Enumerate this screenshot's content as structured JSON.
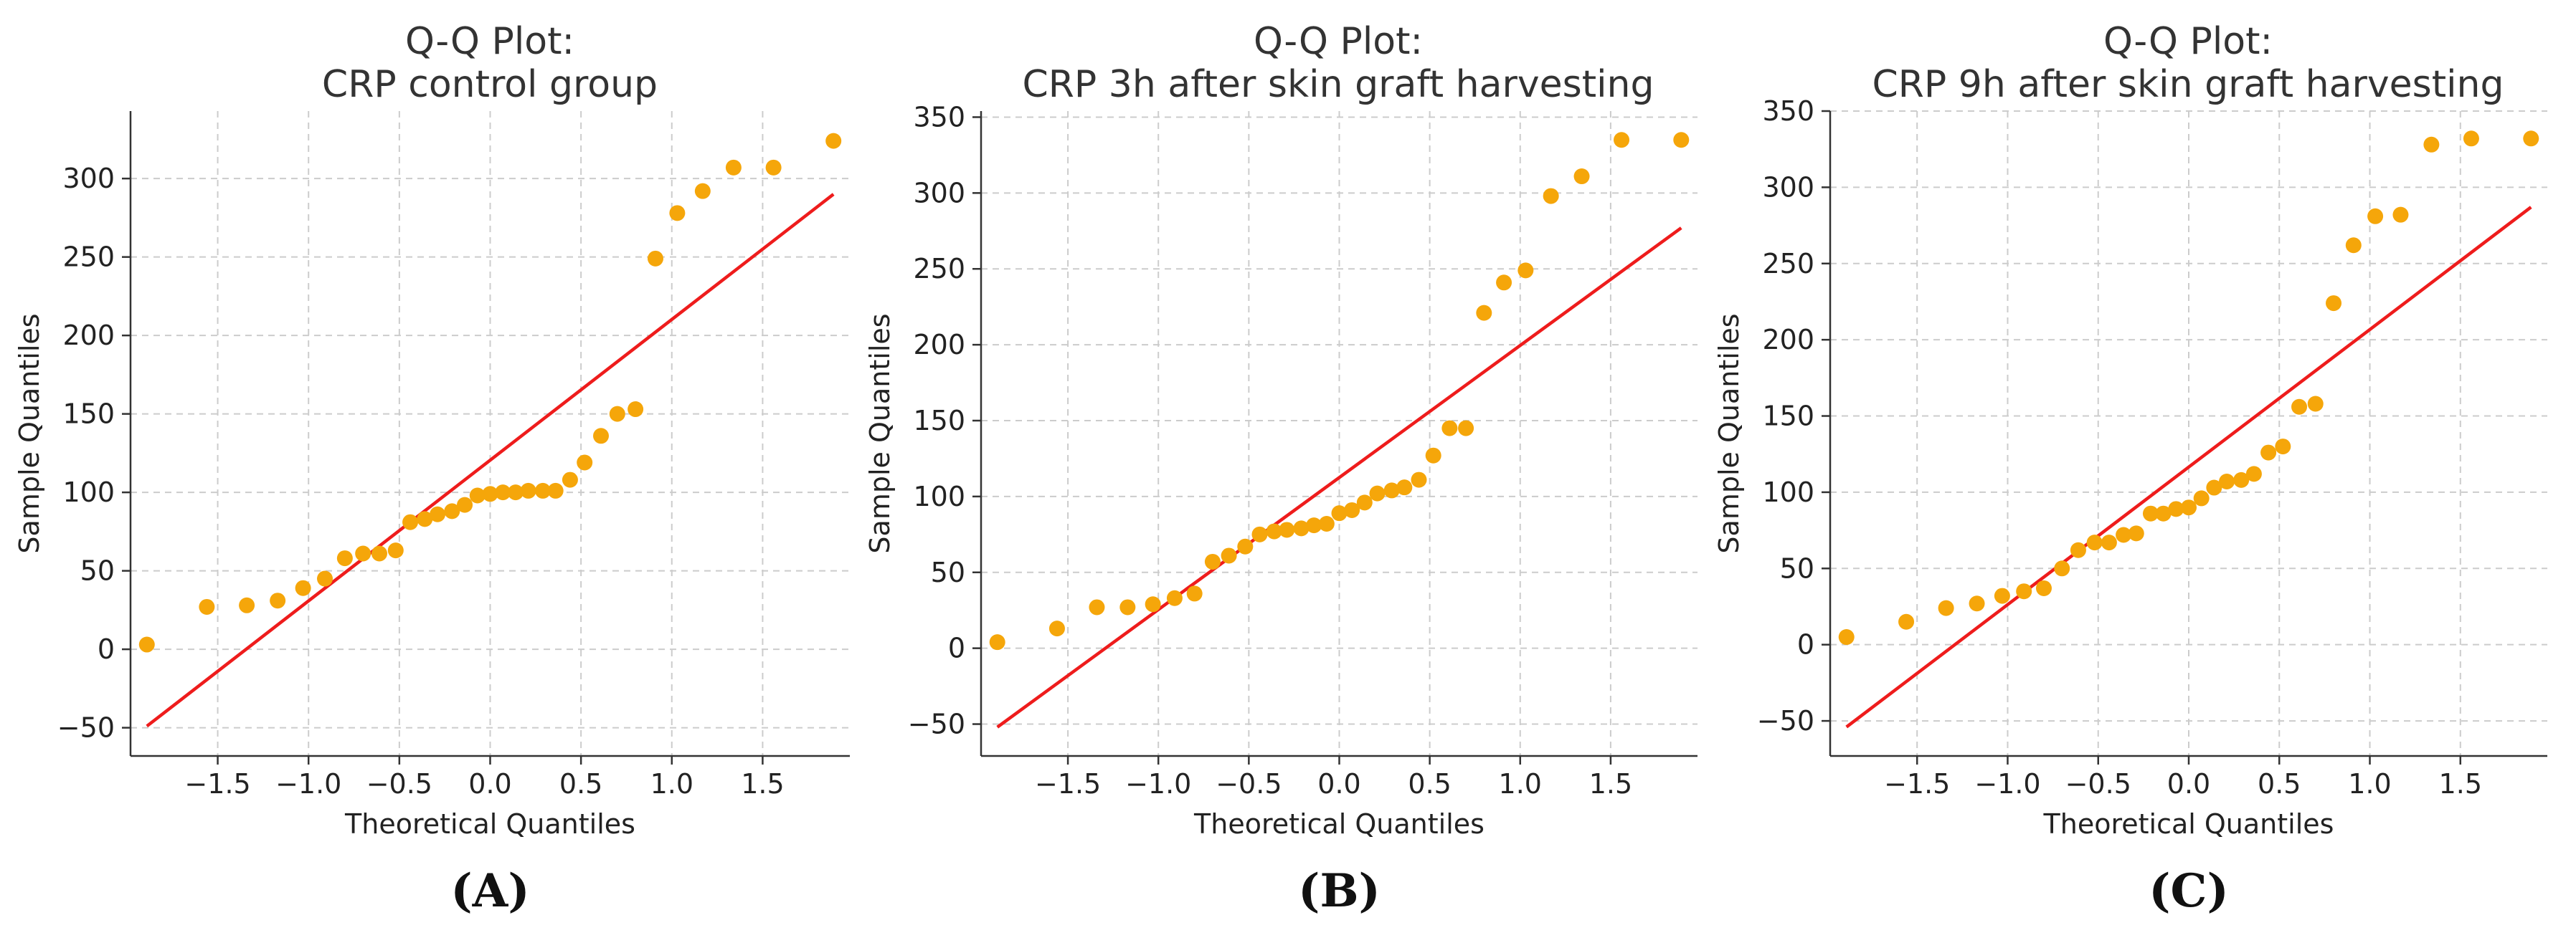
{
  "chart_data": [
    {
      "type": "scatter",
      "title": [
        "Q-Q Plot:",
        "CRP control group"
      ],
      "panel_label": "(A)",
      "xlabel": "Theoretical Quantiles",
      "ylabel": "Sample Quantiles",
      "xlim": [
        -1.98,
        1.98
      ],
      "ylim": [
        -68,
        343
      ],
      "xticks": [
        -1.5,
        -1.0,
        -0.5,
        0.0,
        0.5,
        1.0,
        1.5
      ],
      "xtick_labels": [
        "−1.5",
        "−1.0",
        "−0.5",
        "0.0",
        "0.5",
        "1.0",
        "1.5"
      ],
      "yticks": [
        -50,
        0,
        50,
        100,
        150,
        200,
        250,
        300
      ],
      "ytick_labels": [
        "−50",
        "0",
        "50",
        "100",
        "150",
        "200",
        "250",
        "300"
      ],
      "fit_line": {
        "x": [
          -1.89,
          1.89
        ],
        "y": [
          -49,
          290
        ]
      },
      "points": {
        "x": [
          -1.89,
          -1.56,
          -1.34,
          -1.17,
          -1.03,
          -0.91,
          -0.8,
          -0.7,
          -0.61,
          -0.52,
          -0.44,
          -0.36,
          -0.29,
          -0.21,
          -0.14,
          -0.07,
          0.0,
          0.07,
          0.14,
          0.21,
          0.29,
          0.36,
          0.44,
          0.52,
          0.61,
          0.7,
          0.8,
          0.91,
          1.03,
          1.17,
          1.34,
          1.56,
          1.89
        ],
        "y": [
          3,
          27,
          28,
          31,
          39,
          45,
          58,
          61,
          61,
          63,
          81,
          83,
          86,
          88,
          92,
          98,
          99,
          100,
          100,
          101,
          101,
          101,
          108,
          119,
          136,
          150,
          153,
          249,
          278,
          292,
          307,
          307,
          324
        ]
      }
    },
    {
      "type": "scatter",
      "title": [
        "Q-Q Plot:",
        "CRP 3h after skin graft harvesting"
      ],
      "panel_label": "(B)",
      "xlabel": "Theoretical Quantiles",
      "ylabel": "Sample Quantiles",
      "xlim": [
        -1.98,
        1.98
      ],
      "ylim": [
        -71,
        354
      ],
      "xticks": [
        -1.5,
        -1.0,
        -0.5,
        0.0,
        0.5,
        1.0,
        1.5
      ],
      "xtick_labels": [
        "−1.5",
        "−1.0",
        "−0.5",
        "0.0",
        "0.5",
        "1.0",
        "1.5"
      ],
      "yticks": [
        -50,
        0,
        50,
        100,
        150,
        200,
        250,
        300,
        350
      ],
      "ytick_labels": [
        "−50",
        "0",
        "50",
        "100",
        "150",
        "200",
        "250",
        "300",
        "350"
      ],
      "fit_line": {
        "x": [
          -1.89,
          1.89
        ],
        "y": [
          -52,
          277
        ]
      },
      "points": {
        "x": [
          -1.89,
          -1.56,
          -1.34,
          -1.17,
          -1.03,
          -0.91,
          -0.8,
          -0.7,
          -0.61,
          -0.52,
          -0.44,
          -0.36,
          -0.29,
          -0.21,
          -0.14,
          -0.07,
          0.0,
          0.07,
          0.14,
          0.21,
          0.29,
          0.36,
          0.44,
          0.52,
          0.61,
          0.7,
          0.8,
          0.91,
          1.03,
          1.17,
          1.34,
          1.56,
          1.89
        ],
        "y": [
          4,
          13,
          27,
          27,
          29,
          33,
          36,
          57,
          61,
          67,
          75,
          77,
          78,
          79,
          81,
          82,
          89,
          91,
          96,
          102,
          104,
          106,
          111,
          127,
          145,
          145,
          221,
          241,
          249,
          298,
          311,
          335,
          335
        ]
      }
    },
    {
      "type": "scatter",
      "title": [
        "Q-Q Plot:",
        "CRP 9h after skin graft harvesting"
      ],
      "panel_label": "(C)",
      "xlabel": "Theoretical Quantiles",
      "ylabel": "Sample Quantiles",
      "xlim": [
        -1.98,
        1.98
      ],
      "ylim": [
        -73,
        350
      ],
      "xticks": [
        -1.5,
        -1.0,
        -0.5,
        0.0,
        0.5,
        1.0,
        1.5
      ],
      "xtick_labels": [
        "−1.5",
        "−1.0",
        "−0.5",
        "0.0",
        "0.5",
        "1.0",
        "1.5"
      ],
      "yticks": [
        -50,
        0,
        50,
        100,
        150,
        200,
        250,
        300,
        350
      ],
      "ytick_labels": [
        "−50",
        "0",
        "50",
        "100",
        "150",
        "200",
        "250",
        "300",
        "350"
      ],
      "fit_line": {
        "x": [
          -1.89,
          1.89
        ],
        "y": [
          -54,
          287
        ]
      },
      "points": {
        "x": [
          -1.89,
          -1.56,
          -1.34,
          -1.17,
          -1.03,
          -0.91,
          -0.8,
          -0.7,
          -0.61,
          -0.52,
          -0.44,
          -0.36,
          -0.29,
          -0.21,
          -0.14,
          -0.07,
          0.0,
          0.07,
          0.14,
          0.21,
          0.29,
          0.36,
          0.44,
          0.52,
          0.61,
          0.7,
          0.8,
          0.91,
          1.03,
          1.17,
          1.34,
          1.56,
          1.89
        ],
        "y": [
          5,
          15,
          24,
          27,
          32,
          35,
          37,
          50,
          62,
          67,
          67,
          72,
          73,
          86,
          86,
          89,
          90,
          96,
          103,
          107,
          108,
          112,
          126,
          130,
          156,
          158,
          224,
          262,
          281,
          282,
          328,
          332,
          332
        ]
      }
    }
  ],
  "colors": {
    "points": "#f5a60a",
    "fit_line": "#ee1c1c",
    "grid": "#cccccc"
  }
}
